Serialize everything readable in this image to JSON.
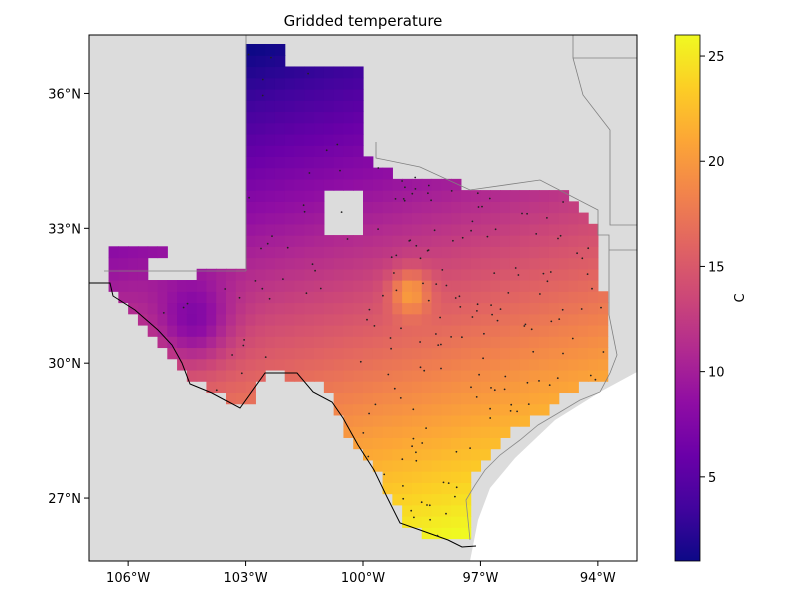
{
  "chart_data": {
    "type": "heatmap",
    "title": "Gridded temperature",
    "subject": "Texas",
    "x_range_deg": [
      -107.0,
      -93.0
    ],
    "y_range_deg": [
      25.6,
      37.3
    ],
    "x_ticks": [
      {
        "value": -106,
        "label": "106°W"
      },
      {
        "value": -103,
        "label": "103°W"
      },
      {
        "value": -100,
        "label": "100°W"
      },
      {
        "value": -97,
        "label": "97°W"
      },
      {
        "value": -94,
        "label": "94°W"
      }
    ],
    "y_ticks": [
      {
        "value": 36,
        "label": "36°N"
      },
      {
        "value": 33,
        "label": "33°N"
      },
      {
        "value": 30,
        "label": "30°N"
      },
      {
        "value": 27,
        "label": "27°N"
      }
    ],
    "colorbar": {
      "label": "C",
      "range": [
        1,
        26
      ],
      "ticks": [
        {
          "value": 5,
          "label": "5"
        },
        {
          "value": 10,
          "label": "10"
        },
        {
          "value": 15,
          "label": "15"
        },
        {
          "value": 20,
          "label": "20"
        },
        {
          "value": 25,
          "label": "25"
        }
      ],
      "colormap": "plasma"
    },
    "colors": {
      "land_background": "#dcdcdc",
      "ocean": "#ffffff",
      "grid_missing": "#ffffff",
      "border_line": "#000000",
      "state_line": "#808080",
      "station_marker": "#222222"
    },
    "grid_resolution_deg": 0.25,
    "temperature_model": "Estimated from the colour field: coldest near 36.4°N 102°W (~2 °C), warmest near 26°N 97.3°W (~25 °C); local warm spot near 31.6°N 98.8°W (~20 °C)"
  }
}
